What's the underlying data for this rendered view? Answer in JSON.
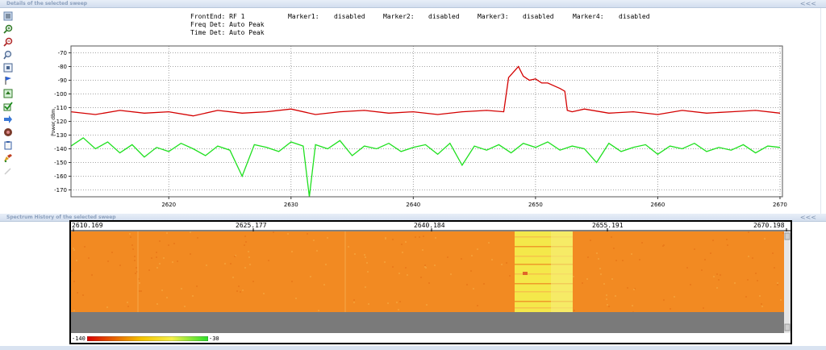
{
  "top_panel": {
    "title": "Details of the selected sweep",
    "collapse": "<<<"
  },
  "bottom_panel": {
    "title": "Spectrum History of the selected sweep",
    "collapse": "<<<"
  },
  "toolbar": {
    "icons": [
      "list-icon",
      "zoom-in-icon",
      "zoom-out-icon",
      "zoom-box-icon",
      "fit-icon",
      "flag-icon",
      "marker-icon",
      "check-icon",
      "arrow-right-icon",
      "record-icon",
      "clipboard-icon",
      "paint-icon",
      "brush-icon"
    ]
  },
  "sweep_info": {
    "frontend": "FrontEnd: RF 1",
    "freq_det": "Freq Det: Auto Peak",
    "time_det": "Time Det: Auto Peak",
    "marker1_label": "Marker1:",
    "marker1_value": "disabled",
    "marker2_label": "Marker2:",
    "marker2_value": "disabled",
    "marker3_label": "Marker3:",
    "marker3_value": "disabled",
    "marker4_label": "Marker4:",
    "marker4_value": "disabled"
  },
  "history": {
    "freq_labels": [
      "2610.169",
      "2625.177",
      "2640.184",
      "2655.191",
      "2670.198"
    ],
    "legend_min": "-140",
    "legend_max": "-30"
  },
  "colors": {
    "max_trace": "#d40000",
    "avg_trace": "#1fe01f",
    "heat_base": "#f28a22",
    "heat_hot": "#f4e84a"
  },
  "chart_data": {
    "type": "line",
    "xlabel": "",
    "ylabel": "Power dBm",
    "xlim": [
      2612,
      2670.2
    ],
    "ylim": [
      -175,
      -65
    ],
    "xticks": [
      2620,
      2630,
      2640,
      2650,
      2660,
      2670
    ],
    "yticks": [
      -70,
      -80,
      -90,
      -100,
      -110,
      -120,
      -130,
      -140,
      -150,
      -160,
      -170
    ],
    "grid": true,
    "series": [
      {
        "name": "",
        "color": "#d40000",
        "x": [
          2612,
          2614,
          2616,
          2618,
          2620,
          2622,
          2624,
          2626,
          2628,
          2630,
          2632,
          2634,
          2636,
          2638,
          2640,
          2642,
          2644,
          2646,
          2647.4,
          2647.8,
          2648.2,
          2648.6,
          2649,
          2649.5,
          2650,
          2650.5,
          2651,
          2651.5,
          2652,
          2652.4,
          2652.6,
          2653,
          2654,
          2656,
          2658,
          2660,
          2662,
          2664,
          2666,
          2668,
          2670
        ],
        "y": [
          -113,
          -115,
          -112,
          -114,
          -113,
          -116,
          -112,
          -114,
          -113,
          -111,
          -115,
          -113,
          -112,
          -114,
          -113,
          -115,
          -113,
          -112,
          -113,
          -88,
          -84,
          -80,
          -87,
          -90,
          -89,
          -92,
          -92,
          -94,
          -96,
          -98,
          -112,
          -113,
          -111,
          -114,
          -113,
          -115,
          -112,
          -114,
          -113,
          -112,
          -114
        ]
      },
      {
        "name": "",
        "color": "#1fe01f",
        "x": [
          2612,
          2613,
          2614,
          2615,
          2616,
          2617,
          2618,
          2619,
          2620,
          2621,
          2622,
          2623,
          2624,
          2625,
          2626,
          2627,
          2628,
          2629,
          2630,
          2631,
          2631.5,
          2632,
          2633,
          2634,
          2635,
          2636,
          2637,
          2638,
          2639,
          2640,
          2641,
          2642,
          2643,
          2644,
          2645,
          2646,
          2647,
          2648,
          2649,
          2650,
          2651,
          2652,
          2653,
          2654,
          2655,
          2656,
          2657,
          2658,
          2659,
          2660,
          2661,
          2662,
          2663,
          2664,
          2665,
          2666,
          2667,
          2668,
          2669,
          2670
        ],
        "y": [
          -138,
          -132,
          -140,
          -135,
          -143,
          -137,
          -146,
          -139,
          -142,
          -136,
          -140,
          -145,
          -138,
          -141,
          -160,
          -137,
          -139,
          -142,
          -135,
          -138,
          -175,
          -137,
          -140,
          -134,
          -145,
          -138,
          -140,
          -136,
          -142,
          -139,
          -137,
          -144,
          -136,
          -152,
          -138,
          -141,
          -137,
          -143,
          -136,
          -139,
          -135,
          -141,
          -138,
          -140,
          -150,
          -136,
          -142,
          -139,
          -137,
          -144,
          -138,
          -140,
          -136,
          -142,
          -139,
          -141,
          -137,
          -143,
          -138,
          -139
        ]
      }
    ]
  }
}
